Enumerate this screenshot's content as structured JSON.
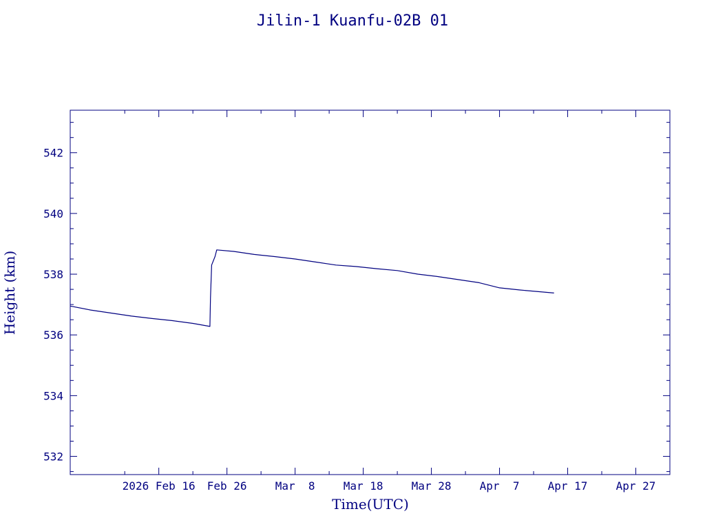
{
  "colors": {
    "ink": "#000080",
    "background": "#ffffff"
  },
  "chart_data": {
    "type": "line",
    "title": "Jilin-1 Kuanfu-02B 01",
    "xlabel": "Time(UTC)",
    "ylabel": "Height (km)",
    "x_axis": "date",
    "xlim": [
      "2026-02-03T00:00",
      "2026-05-02T00:00"
    ],
    "ylim": [
      531.4,
      543.4
    ],
    "grid": false,
    "legend": "none",
    "x_ticks": [
      {
        "date": "2026-02-16T00:00",
        "label": "2026 Feb 16"
      },
      {
        "date": "2026-02-26T00:00",
        "label": "Feb 26"
      },
      {
        "date": "2026-03-08T00:00",
        "label": "Mar  8"
      },
      {
        "date": "2026-03-18T00:00",
        "label": "Mar 18"
      },
      {
        "date": "2026-03-28T00:00",
        "label": "Mar 28"
      },
      {
        "date": "2026-04-07T00:00",
        "label": "Apr  7"
      },
      {
        "date": "2026-04-17T00:00",
        "label": "Apr 17"
      },
      {
        "date": "2026-04-27T00:00",
        "label": "Apr 27"
      }
    ],
    "y_ticks": [
      {
        "value": 532,
        "label": "532"
      },
      {
        "value": 534,
        "label": "534"
      },
      {
        "value": 536,
        "label": "536"
      },
      {
        "value": 538,
        "label": "538"
      },
      {
        "value": 540,
        "label": "540"
      },
      {
        "value": 542,
        "label": "542"
      }
    ],
    "series": [
      {
        "points": [
          {
            "x": "2026-02-03T00:00",
            "y": 536.95
          },
          {
            "x": "2026-02-06T00:00",
            "y": 536.82
          },
          {
            "x": "2026-02-09T00:00",
            "y": 536.72
          },
          {
            "x": "2026-02-12T00:00",
            "y": 536.62
          },
          {
            "x": "2026-02-15T00:00",
            "y": 536.54
          },
          {
            "x": "2026-02-18T00:00",
            "y": 536.47
          },
          {
            "x": "2026-02-21T00:00",
            "y": 536.38
          },
          {
            "x": "2026-02-23T12:00",
            "y": 536.28
          },
          {
            "x": "2026-02-23T14:00",
            "y": 537.2
          },
          {
            "x": "2026-02-23T18:00",
            "y": 538.3
          },
          {
            "x": "2026-02-24T06:00",
            "y": 538.58
          },
          {
            "x": "2026-02-24T12:00",
            "y": 538.8
          },
          {
            "x": "2026-02-27T00:00",
            "y": 538.75
          },
          {
            "x": "2026-03-02T00:00",
            "y": 538.65
          },
          {
            "x": "2026-03-05T00:00",
            "y": 538.58
          },
          {
            "x": "2026-03-08T00:00",
            "y": 538.5
          },
          {
            "x": "2026-03-11T00:00",
            "y": 538.4
          },
          {
            "x": "2026-03-14T00:00",
            "y": 538.3
          },
          {
            "x": "2026-03-17T00:00",
            "y": 538.25
          },
          {
            "x": "2026-03-20T00:00",
            "y": 538.18
          },
          {
            "x": "2026-03-23T00:00",
            "y": 538.12
          },
          {
            "x": "2026-03-26T00:00",
            "y": 538.0
          },
          {
            "x": "2026-03-29T00:00",
            "y": 537.92
          },
          {
            "x": "2026-04-01T00:00",
            "y": 537.82
          },
          {
            "x": "2026-04-04T00:00",
            "y": 537.72
          },
          {
            "x": "2026-04-07T00:00",
            "y": 537.55
          },
          {
            "x": "2026-04-10T00:00",
            "y": 537.48
          },
          {
            "x": "2026-04-13T00:00",
            "y": 537.42
          },
          {
            "x": "2026-04-15T00:00",
            "y": 537.38
          }
        ]
      }
    ]
  }
}
